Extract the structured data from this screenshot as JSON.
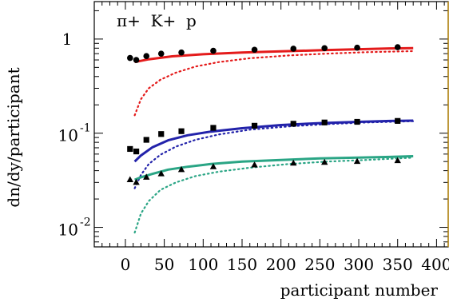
{
  "chart_data": {
    "type": "scatter",
    "xlabel": "participant number",
    "ylabel": "dn/dy/participant",
    "xlim": [
      -40,
      415
    ],
    "ylim": [
      0.0062,
      2.5
    ],
    "ylog": true,
    "xticks": [
      0,
      50,
      100,
      150,
      200,
      250,
      300,
      350,
      400
    ],
    "yticks": [
      {
        "value": 1,
        "base": "1",
        "exp": ""
      },
      {
        "value": 0.1,
        "base": "10",
        "exp": "-1"
      },
      {
        "value": 0.01,
        "base": "10",
        "exp": "-2"
      }
    ],
    "legend": {
      "text": "π+  K+  p",
      "position": "top-left"
    },
    "series": [
      {
        "color": "#e41b1b",
        "marker": "circle",
        "points": [
          [
            6,
            0.63
          ],
          [
            14,
            0.6
          ],
          [
            27,
            0.66
          ],
          [
            46,
            0.7
          ],
          [
            72,
            0.72
          ],
          [
            113,
            0.75
          ],
          [
            166,
            0.77
          ],
          [
            216,
            0.79
          ],
          [
            256,
            0.8
          ],
          [
            298,
            0.81
          ],
          [
            350,
            0.82
          ]
        ],
        "solid": [
          [
            12,
            0.57
          ],
          [
            30,
            0.61
          ],
          [
            60,
            0.655
          ],
          [
            100,
            0.69
          ],
          [
            150,
            0.72
          ],
          [
            200,
            0.74
          ],
          [
            250,
            0.76
          ],
          [
            300,
            0.78
          ],
          [
            340,
            0.795
          ],
          [
            370,
            0.8
          ]
        ],
        "dotted": [
          [
            12,
            0.155
          ],
          [
            20,
            0.23
          ],
          [
            30,
            0.3
          ],
          [
            45,
            0.37
          ],
          [
            65,
            0.44
          ],
          [
            90,
            0.51
          ],
          [
            120,
            0.57
          ],
          [
            160,
            0.625
          ],
          [
            210,
            0.67
          ],
          [
            260,
            0.7
          ],
          [
            310,
            0.725
          ],
          [
            370,
            0.745
          ]
        ]
      },
      {
        "color": "#2222aa",
        "marker": "square",
        "points": [
          [
            6,
            0.068
          ],
          [
            14,
            0.064
          ],
          [
            27,
            0.085
          ],
          [
            46,
            0.098
          ],
          [
            72,
            0.105
          ],
          [
            113,
            0.114
          ],
          [
            166,
            0.12
          ],
          [
            216,
            0.126
          ],
          [
            256,
            0.13
          ],
          [
            298,
            0.132
          ],
          [
            350,
            0.135
          ]
        ],
        "solid": [
          [
            12,
            0.05
          ],
          [
            20,
            0.058
          ],
          [
            35,
            0.071
          ],
          [
            55,
            0.084
          ],
          [
            80,
            0.095
          ],
          [
            110,
            0.104
          ],
          [
            150,
            0.113
          ],
          [
            200,
            0.122
          ],
          [
            250,
            0.128
          ],
          [
            300,
            0.132
          ],
          [
            340,
            0.135
          ],
          [
            370,
            0.136
          ]
        ],
        "dotted": [
          [
            12,
            0.026
          ],
          [
            20,
            0.036
          ],
          [
            30,
            0.047
          ],
          [
            45,
            0.059
          ],
          [
            65,
            0.072
          ],
          [
            90,
            0.085
          ],
          [
            120,
            0.097
          ],
          [
            160,
            0.109
          ],
          [
            210,
            0.118
          ],
          [
            260,
            0.125
          ],
          [
            310,
            0.13
          ],
          [
            370,
            0.134
          ]
        ]
      },
      {
        "color": "#2aa585",
        "marker": "triangle",
        "points": [
          [
            6,
            0.032
          ],
          [
            14,
            0.03
          ],
          [
            27,
            0.034
          ],
          [
            46,
            0.037
          ],
          [
            72,
            0.041
          ],
          [
            113,
            0.044
          ],
          [
            166,
            0.046
          ],
          [
            216,
            0.048
          ],
          [
            256,
            0.049
          ],
          [
            298,
            0.05
          ],
          [
            350,
            0.051
          ]
        ],
        "solid": [
          [
            12,
            0.032
          ],
          [
            20,
            0.034
          ],
          [
            35,
            0.037
          ],
          [
            55,
            0.041
          ],
          [
            80,
            0.044
          ],
          [
            110,
            0.047
          ],
          [
            150,
            0.05
          ],
          [
            200,
            0.052
          ],
          [
            250,
            0.054
          ],
          [
            300,
            0.055
          ],
          [
            340,
            0.056
          ],
          [
            370,
            0.057
          ]
        ],
        "dotted": [
          [
            12,
            0.0088
          ],
          [
            20,
            0.014
          ],
          [
            30,
            0.019
          ],
          [
            45,
            0.025
          ],
          [
            65,
            0.03
          ],
          [
            90,
            0.035
          ],
          [
            120,
            0.039
          ],
          [
            160,
            0.043
          ],
          [
            210,
            0.047
          ],
          [
            260,
            0.05
          ],
          [
            310,
            0.052
          ],
          [
            370,
            0.055
          ]
        ]
      }
    ]
  }
}
